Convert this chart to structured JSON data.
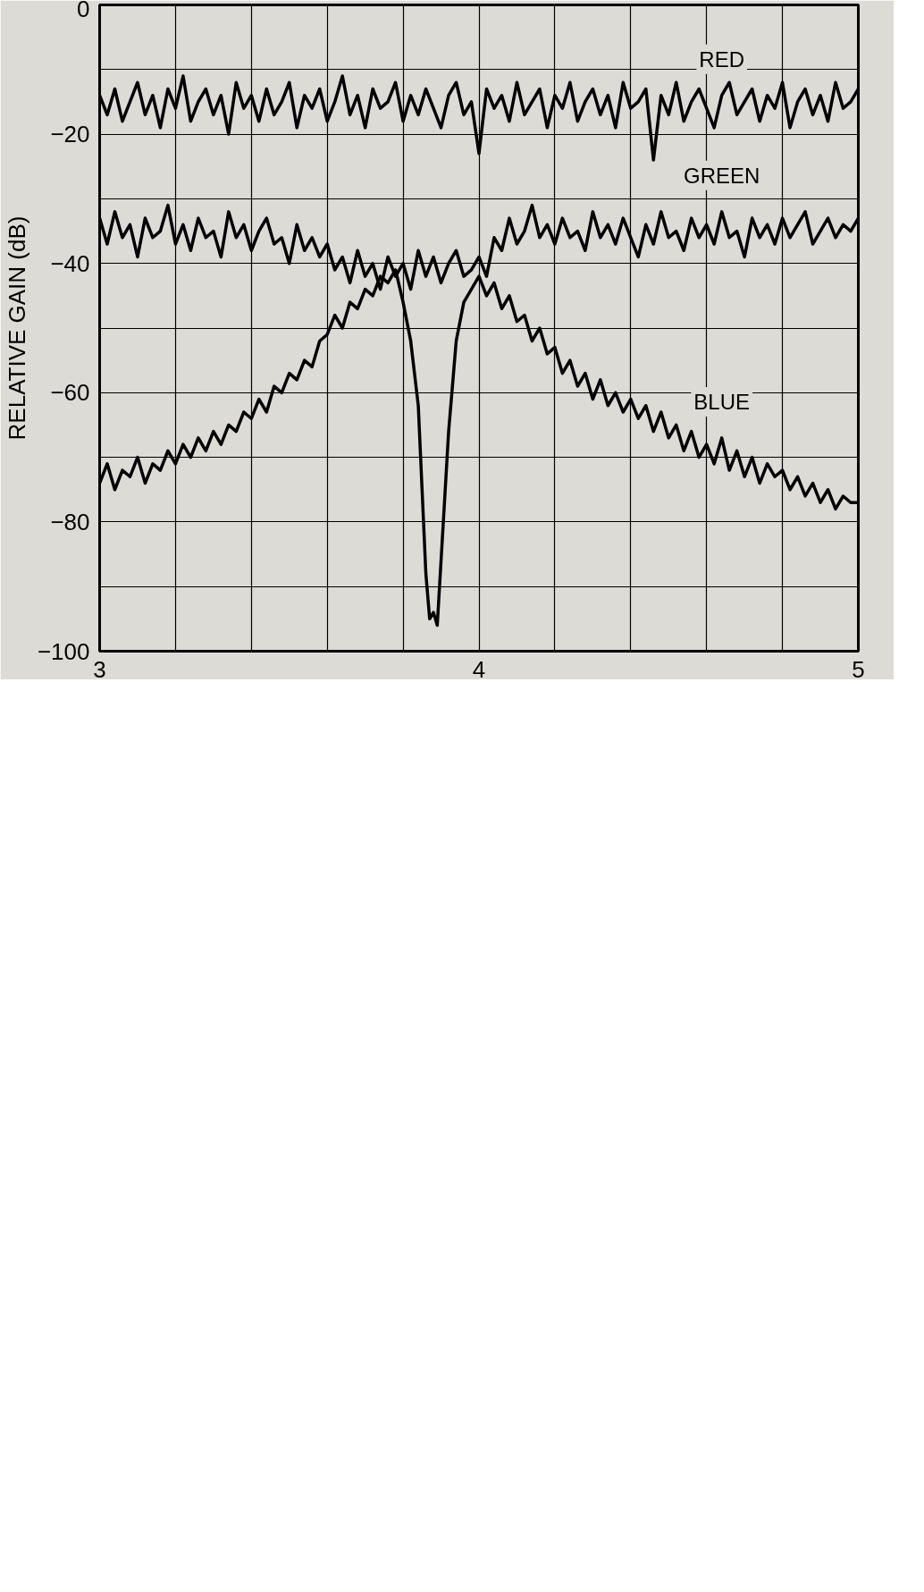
{
  "chart_data": {
    "type": "line",
    "ylabel": "RELATIVE GAIN (dB)",
    "x": [
      3.0,
      3.02,
      3.04,
      3.06,
      3.08,
      3.1,
      3.12,
      3.14,
      3.16,
      3.18,
      3.2,
      3.22,
      3.24,
      3.26,
      3.28,
      3.3,
      3.32,
      3.34,
      3.36,
      3.38,
      3.4,
      3.42,
      3.44,
      3.46,
      3.48,
      3.5,
      3.52,
      3.54,
      3.56,
      3.58,
      3.6,
      3.62,
      3.64,
      3.66,
      3.68,
      3.7,
      3.72,
      3.74,
      3.76,
      3.78,
      3.8,
      3.82,
      3.84,
      3.86,
      3.88,
      3.9,
      3.92,
      3.94,
      3.96,
      3.98,
      4.0,
      4.02,
      4.04,
      4.06,
      4.08,
      4.1,
      4.12,
      4.14,
      4.16,
      4.18,
      4.2,
      4.22,
      4.24,
      4.26,
      4.28,
      4.3,
      4.32,
      4.34,
      4.36,
      4.38,
      4.4,
      4.42,
      4.44,
      4.46,
      4.48,
      4.5,
      4.52,
      4.54,
      4.56,
      4.58,
      4.6,
      4.62,
      4.64,
      4.66,
      4.68,
      4.7,
      4.72,
      4.74,
      4.76,
      4.78,
      4.8,
      4.82,
      4.84,
      4.86,
      4.88,
      4.9,
      4.92,
      4.94,
      4.96,
      4.98,
      5.0
    ],
    "series": [
      {
        "name": "RED",
        "color": "#000000",
        "values": [
          -14,
          -17,
          -13,
          -18,
          -15,
          -12,
          -17,
          -14,
          -19,
          -13,
          -16,
          -11,
          -18,
          -15,
          -13,
          -17,
          -14,
          -20,
          -12,
          -16,
          -14,
          -18,
          -13,
          -17,
          -15,
          -12,
          -19,
          -14,
          -16,
          -13,
          -18,
          -15,
          -11,
          -17,
          -14,
          -19,
          -13,
          -16,
          -15,
          -12,
          -18,
          -14,
          -17,
          -13,
          -16,
          -19,
          -14,
          -12,
          -17,
          -15,
          -23,
          -13,
          -16,
          -14,
          -18,
          -12,
          -17,
          -15,
          -13,
          -19,
          -14,
          -16,
          -12,
          -18,
          -15,
          -13,
          -17,
          -14,
          -19,
          -12,
          -16,
          -15,
          -13,
          -24,
          -14,
          -17,
          -12,
          -18,
          -15,
          -13,
          -16,
          -19,
          -14,
          -12,
          -17,
          -15,
          -13,
          -18,
          -14,
          -16,
          -12,
          -19,
          -15,
          -13,
          -17,
          -14,
          -18,
          -12,
          -16,
          -15,
          -13
        ]
      },
      {
        "name": "GREEN",
        "color": "#000000",
        "values": [
          -33,
          -37,
          -32,
          -36,
          -34,
          -39,
          -33,
          -36,
          -35,
          -31,
          -37,
          -34,
          -38,
          -33,
          -36,
          -35,
          -39,
          -32,
          -36,
          -34,
          -38,
          -35,
          -33,
          -37,
          -36,
          -40,
          -34,
          -38,
          -36,
          -39,
          -37,
          -41,
          -39,
          -43,
          -38,
          -42,
          -40,
          -44,
          -39,
          -42,
          -40,
          -44,
          -38,
          -42,
          -39,
          -43,
          -40,
          -38,
          -42,
          -41,
          -39,
          -42,
          -36,
          -38,
          -33,
          -37,
          -35,
          -31,
          -36,
          -34,
          -37,
          -33,
          -36,
          -35,
          -38,
          -32,
          -36,
          -34,
          -37,
          -33,
          -36,
          -39,
          -34,
          -37,
          -32,
          -36,
          -35,
          -38,
          -33,
          -36,
          -34,
          -37,
          -32,
          -36,
          -35,
          -39,
          -33,
          -36,
          -34,
          -37,
          -33,
          -36,
          -34,
          -32,
          -37,
          -35,
          -33,
          -36,
          -34,
          -35,
          -33
        ]
      },
      {
        "name": "BLUE",
        "color": "#000000",
        "x": [
          3.0,
          3.02,
          3.04,
          3.06,
          3.08,
          3.1,
          3.12,
          3.14,
          3.16,
          3.18,
          3.2,
          3.22,
          3.24,
          3.26,
          3.28,
          3.3,
          3.32,
          3.34,
          3.36,
          3.38,
          3.4,
          3.42,
          3.44,
          3.46,
          3.48,
          3.5,
          3.52,
          3.54,
          3.56,
          3.58,
          3.6,
          3.62,
          3.64,
          3.66,
          3.68,
          3.7,
          3.72,
          3.74,
          3.76,
          3.78,
          3.8,
          3.82,
          3.84,
          3.85,
          3.86,
          3.87,
          3.88,
          3.89,
          3.9,
          3.92,
          3.94,
          3.96,
          3.98,
          4.0,
          4.02,
          4.04,
          4.06,
          4.08,
          4.1,
          4.12,
          4.14,
          4.16,
          4.18,
          4.2,
          4.22,
          4.24,
          4.26,
          4.28,
          4.3,
          4.32,
          4.34,
          4.36,
          4.38,
          4.4,
          4.42,
          4.44,
          4.46,
          4.48,
          4.5,
          4.52,
          4.54,
          4.56,
          4.58,
          4.6,
          4.62,
          4.64,
          4.66,
          4.68,
          4.7,
          4.72,
          4.74,
          4.76,
          4.78,
          4.8,
          4.82,
          4.84,
          4.86,
          4.88,
          4.9,
          4.92,
          4.94,
          4.96,
          4.98,
          5.0
        ],
        "values": [
          -74,
          -71,
          -75,
          -72,
          -73,
          -70,
          -74,
          -71,
          -72,
          -69,
          -71,
          -68,
          -70,
          -67,
          -69,
          -66,
          -68,
          -65,
          -66,
          -63,
          -64,
          -61,
          -63,
          -59,
          -60,
          -57,
          -58,
          -55,
          -56,
          -52,
          -51,
          -48,
          -50,
          -46,
          -47,
          -44,
          -45,
          -42,
          -43,
          -41,
          -46,
          -52,
          -62,
          -75,
          -88,
          -95,
          -94,
          -96,
          -86,
          -66,
          -52,
          -46,
          -44,
          -42,
          -45,
          -43,
          -47,
          -45,
          -49,
          -48,
          -52,
          -50,
          -54,
          -53,
          -57,
          -55,
          -59,
          -57,
          -61,
          -58,
          -62,
          -60,
          -63,
          -61,
          -64,
          -62,
          -66,
          -63,
          -67,
          -65,
          -69,
          -66,
          -70,
          -68,
          -71,
          -67,
          -72,
          -69,
          -73,
          -70,
          -74,
          -71,
          -73,
          -72,
          -75,
          -73,
          -76,
          -74,
          -77,
          -75,
          -78,
          -76,
          -77,
          -77
        ]
      }
    ],
    "xlim": [
      3,
      5
    ],
    "ylim": [
      -100,
      0
    ],
    "xticks": [
      3,
      {
        "value": 3.2,
        "label": null
      },
      {
        "value": 3.4,
        "label": null
      },
      {
        "value": 3.6,
        "label": null
      },
      {
        "value": 3.8,
        "label": null
      },
      4,
      {
        "value": 4.2,
        "label": null
      },
      {
        "value": 4.4,
        "label": null
      },
      {
        "value": 4.6,
        "label": null
      },
      {
        "value": 4.8,
        "label": null
      },
      5
    ],
    "yticks": [
      -100,
      {
        "value": -90,
        "label": null
      },
      -80,
      {
        "value": -70,
        "label": null
      },
      -60,
      {
        "value": -50,
        "label": null
      },
      -40,
      {
        "value": -30,
        "label": null
      },
      -20,
      {
        "value": -10,
        "label": null
      },
      0
    ],
    "grid": true,
    "line_style": "solid"
  }
}
